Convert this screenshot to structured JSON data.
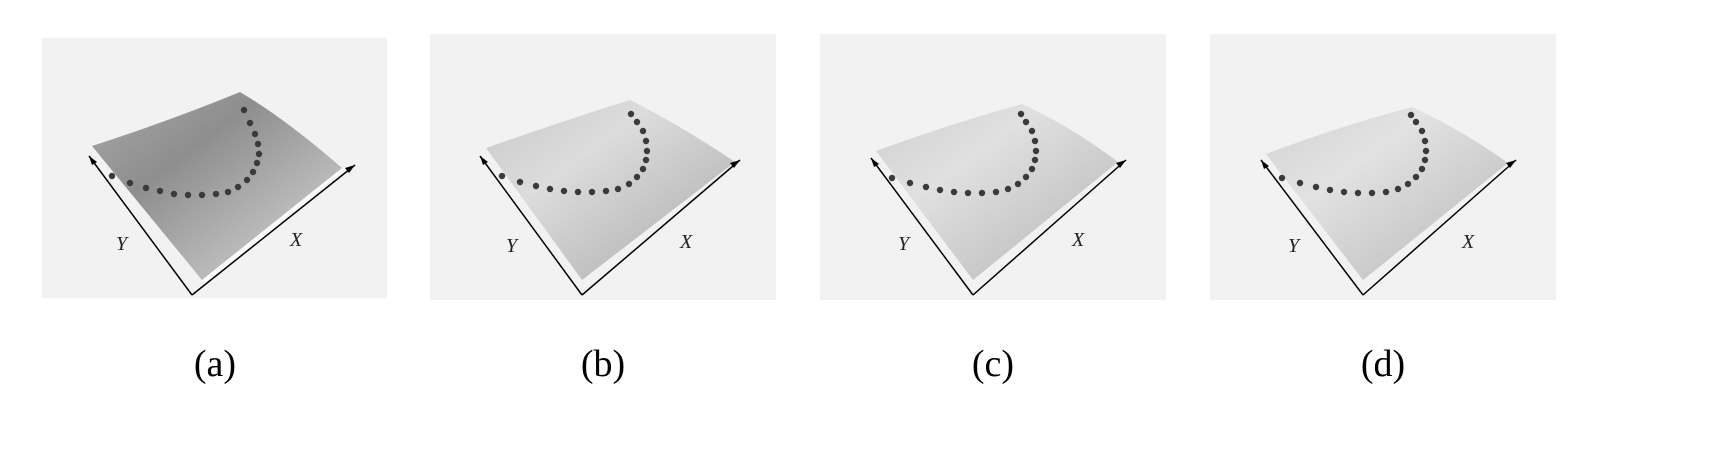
{
  "panels": [
    {
      "caption": "(a)",
      "x_label": "X",
      "y_label": "Y"
    },
    {
      "caption": "(b)",
      "x_label": "X",
      "y_label": "Y"
    },
    {
      "caption": "(c)",
      "x_label": "X",
      "y_label": "Y"
    },
    {
      "caption": "(d)",
      "x_label": "X",
      "y_label": "Y"
    }
  ],
  "colors": {
    "background": "#ffffff",
    "panel_background": "#f2f2f2",
    "surface_light": "#d6d6d6",
    "surface_dark": "#8e8e8e",
    "dots": "#3a3a3a",
    "axis": "#000000"
  }
}
